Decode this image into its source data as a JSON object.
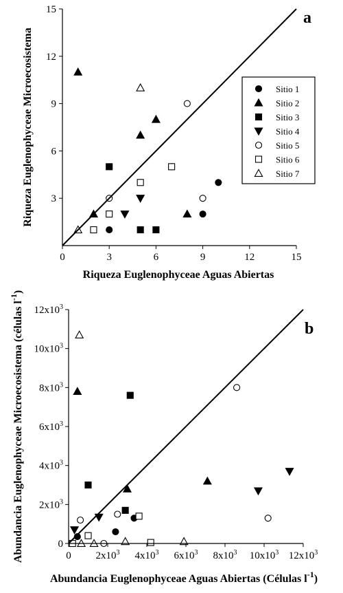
{
  "figure": {
    "panels": [
      "a",
      "b"
    ]
  },
  "legend": {
    "entries": [
      {
        "label": "Sitio 1",
        "marker": "circle-filled"
      },
      {
        "label": "Sitio 2",
        "marker": "triangle-up-filled"
      },
      {
        "label": "Sitio 3",
        "marker": "square-filled"
      },
      {
        "label": "Sitio 4",
        "marker": "triangle-down-filled"
      },
      {
        "label": "Sitio 5",
        "marker": "circle-open"
      },
      {
        "label": "Sitio 6",
        "marker": "square-open"
      },
      {
        "label": "Sitio 7",
        "marker": "triangle-up-open"
      }
    ]
  },
  "chart_data": [
    {
      "type": "scatter",
      "panel_letter": "a",
      "xlabel": "Riqueza Euglenophyceae Aguas Abiertas",
      "ylabel": "Riqueza Euglenophyceae Microecosistema",
      "xlim": [
        0,
        15
      ],
      "ylim": [
        0,
        15
      ],
      "x_ticks": [
        "0",
        "3",
        "6",
        "9",
        "12",
        "15"
      ],
      "x_tick_values": [
        0,
        3,
        6,
        9,
        12,
        15
      ],
      "y_ticks": [
        "3",
        "6",
        "9",
        "12",
        "15"
      ],
      "y_tick_values": [
        3,
        6,
        9,
        12,
        15
      ],
      "reference_line": {
        "x": [
          0,
          15
        ],
        "y": [
          0,
          15
        ]
      },
      "legend_position": "right",
      "series": [
        {
          "name": "Sitio 1",
          "x": [
            3,
            9,
            10
          ],
          "y": [
            1,
            2,
            4
          ]
        },
        {
          "name": "Sitio 2",
          "x": [
            1,
            2,
            5,
            6,
            8
          ],
          "y": [
            11,
            2,
            7,
            8,
            2
          ]
        },
        {
          "name": "Sitio 3",
          "x": [
            3,
            5,
            6
          ],
          "y": [
            5,
            1,
            1
          ]
        },
        {
          "name": "Sitio 4",
          "x": [
            4,
            5
          ],
          "y": [
            2,
            3
          ]
        },
        {
          "name": "Sitio 5",
          "x": [
            3,
            7,
            8,
            9
          ],
          "y": [
            3,
            5,
            9,
            3
          ]
        },
        {
          "name": "Sitio 6",
          "x": [
            2,
            3,
            5,
            7
          ],
          "y": [
            1,
            2,
            4,
            5
          ]
        },
        {
          "name": "Sitio 7",
          "x": [
            1,
            5
          ],
          "y": [
            1,
            10
          ]
        }
      ]
    },
    {
      "type": "scatter",
      "panel_letter": "b",
      "xlabel_main": "Abundancia Euglenophyceae Aguas Abiertas (Células l",
      "xlabel_sup": "-1",
      "xlabel_end": ")",
      "ylabel_main": "Abundancia Euglenophyceae Microecosistema (células l",
      "ylabel_sup": "-1",
      "ylabel_end": ")",
      "xlim": [
        0,
        12000
      ],
      "ylim": [
        0,
        12000
      ],
      "x_ticks": [
        {
          "value": 0,
          "base": "0",
          "exp": ""
        },
        {
          "value": 2000,
          "base": "2x10",
          "exp": "3"
        },
        {
          "value": 4000,
          "base": "4x10",
          "exp": "3"
        },
        {
          "value": 6000,
          "base": "6x10",
          "exp": "3"
        },
        {
          "value": 8000,
          "base": "8x10",
          "exp": "3"
        },
        {
          "value": 10000,
          "base": "10x10",
          "exp": "3"
        },
        {
          "value": 12000,
          "base": "12x10",
          "exp": "3"
        }
      ],
      "y_ticks": [
        {
          "value": 0,
          "base": "0",
          "exp": ""
        },
        {
          "value": 2000,
          "base": "2x10",
          "exp": "3"
        },
        {
          "value": 4000,
          "base": "4x10",
          "exp": "3"
        },
        {
          "value": 6000,
          "base": "6x10",
          "exp": "3"
        },
        {
          "value": 8000,
          "base": "8x10",
          "exp": "3"
        },
        {
          "value": 10000,
          "base": "10x10",
          "exp": "3"
        },
        {
          "value": 12000,
          "base": "12x10",
          "exp": "3"
        }
      ],
      "reference_line": {
        "x": [
          0,
          12000
        ],
        "y": [
          0,
          12000
        ]
      },
      "series": [
        {
          "name": "Sitio 1",
          "x": [
            450,
            2400,
            3350
          ],
          "y": [
            350,
            600,
            1300
          ]
        },
        {
          "name": "Sitio 2",
          "x": [
            450,
            3000,
            7100
          ],
          "y": [
            7800,
            2800,
            3200
          ]
        },
        {
          "name": "Sitio 3",
          "x": [
            1000,
            2900,
            3150
          ],
          "y": [
            3000,
            1700,
            7600
          ]
        },
        {
          "name": "Sitio 4",
          "x": [
            300,
            1550,
            9700,
            11300
          ],
          "y": [
            700,
            1350,
            2700,
            3700
          ]
        },
        {
          "name": "Sitio 5",
          "x": [
            600,
            1800,
            2500,
            8600,
            10200
          ],
          "y": [
            1200,
            0,
            1500,
            8000,
            1300
          ]
        },
        {
          "name": "Sitio 6",
          "x": [
            200,
            1000,
            3600,
            4200
          ],
          "y": [
            0,
            400,
            1400,
            50
          ]
        },
        {
          "name": "Sitio 7",
          "x": [
            550,
            650,
            1300,
            2900,
            5900
          ],
          "y": [
            10700,
            0,
            0,
            100,
            100
          ]
        }
      ]
    }
  ]
}
